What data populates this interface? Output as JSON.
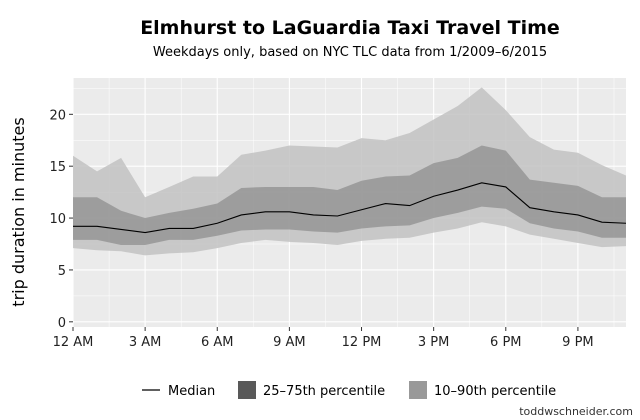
{
  "chart_data": {
    "type": "area",
    "title": "Elmhurst to LaGuardia Taxi Travel Time",
    "subtitle": "Weekdays only, based on NYC TLC data from 1/2009–6/2015",
    "xlabel": "",
    "ylabel": "trip duration in minutes",
    "xlim": [
      0,
      23
    ],
    "ylim": [
      -0.5,
      23.5
    ],
    "x_ticks": [
      {
        "value": 0,
        "label": "12 AM"
      },
      {
        "value": 3,
        "label": "3 AM"
      },
      {
        "value": 6,
        "label": "6 AM"
      },
      {
        "value": 9,
        "label": "9 AM"
      },
      {
        "value": 12,
        "label": "12 PM"
      },
      {
        "value": 15,
        "label": "3 PM"
      },
      {
        "value": 18,
        "label": "6 PM"
      },
      {
        "value": 21,
        "label": "9 PM"
      }
    ],
    "y_ticks": [
      0,
      5,
      10,
      15,
      20
    ],
    "grid": true,
    "legend_position": "bottom",
    "x": [
      0,
      1,
      2,
      3,
      4,
      5,
      6,
      7,
      8,
      9,
      10,
      11,
      12,
      13,
      14,
      15,
      16,
      17,
      18,
      19,
      20,
      21,
      22,
      23
    ],
    "series": [
      {
        "name": "Median",
        "kind": "line",
        "values": [
          9.2,
          9.2,
          8.9,
          8.6,
          9.0,
          9.0,
          9.5,
          10.3,
          10.6,
          10.6,
          10.3,
          10.2,
          10.8,
          11.4,
          11.2,
          12.1,
          12.7,
          13.4,
          13.0,
          11.0,
          10.6,
          10.3,
          9.6,
          9.5
        ]
      },
      {
        "name": "25–75th percentile",
        "kind": "band",
        "low": [
          7.9,
          7.9,
          7.4,
          7.4,
          7.9,
          7.9,
          8.3,
          8.8,
          8.9,
          8.9,
          8.7,
          8.6,
          9.0,
          9.2,
          9.3,
          10.0,
          10.5,
          11.1,
          10.9,
          9.5,
          9.0,
          8.7,
          8.1,
          8.1
        ],
        "high": [
          12.0,
          12.0,
          10.7,
          10.0,
          10.5,
          10.9,
          11.4,
          12.9,
          13.0,
          13.0,
          13.0,
          12.7,
          13.6,
          14.0,
          14.1,
          15.3,
          15.8,
          17.0,
          16.5,
          13.7,
          13.4,
          13.1,
          12.0,
          12.0
        ]
      },
      {
        "name": "10–90th percentile",
        "kind": "band",
        "low": [
          7.1,
          6.9,
          6.8,
          6.4,
          6.6,
          6.7,
          7.1,
          7.6,
          7.9,
          7.7,
          7.6,
          7.4,
          7.8,
          8.0,
          8.1,
          8.6,
          9.0,
          9.6,
          9.2,
          8.4,
          8.0,
          7.6,
          7.2,
          7.3
        ],
        "high": [
          16.0,
          14.5,
          15.8,
          12.0,
          13.0,
          14.0,
          14.0,
          16.1,
          16.5,
          17.0,
          16.9,
          16.8,
          17.7,
          17.5,
          18.2,
          19.5,
          20.8,
          22.6,
          20.4,
          17.8,
          16.6,
          16.3,
          15.1,
          14.1
        ]
      }
    ]
  },
  "legend": {
    "median": "Median",
    "iqr": "25–75th percentile",
    "p1090": "10–90th percentile"
  },
  "credit": "toddwschneider.com",
  "colors": {
    "panel": "#ebebeb",
    "grid": "#ffffff",
    "band_outer": "#c2c2c2",
    "band_inner": "#8f8f8f",
    "line": "#000000"
  }
}
